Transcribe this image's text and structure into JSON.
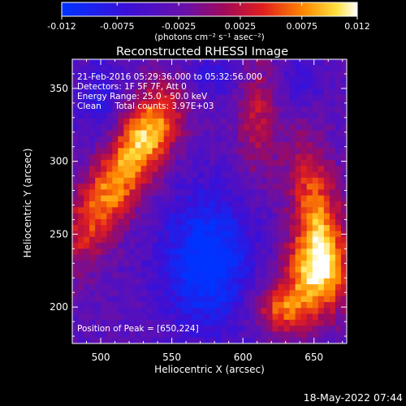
{
  "footer_timestamp": "18-May-2022 07:44",
  "chart_data": {
    "type": "heatmap",
    "title": "Reconstructed RHESSI Image",
    "xlabel": "Heliocentric X (arcsec)",
    "ylabel": "Heliocentric Y (arcsec)",
    "xlim": [
      480,
      673
    ],
    "ylim": [
      175,
      370
    ],
    "xticks": [
      500,
      550,
      600,
      650
    ],
    "yticks": [
      200,
      250,
      300,
      350
    ],
    "colorbar": {
      "min": -0.012,
      "max": 0.012,
      "ticks": [
        "-0.012",
        "-0.0075",
        "-0.0025",
        "0.0025",
        "0.0075",
        "0.012"
      ],
      "tick_values": [
        -0.012,
        -0.0075,
        -0.0025,
        0.0025,
        0.0075,
        0.012
      ],
      "unit_label": "(photons cm⁻² s⁻¹ asec⁻²)"
    },
    "annotations": [
      "21-Feb-2016 05:29:36.000 to 05:32:56.000",
      "Detectors: 1F 5F 7F, Att 0",
      "Energy Range: 25.0 - 50.0 keV",
      "Clean     Total counts: 3.97E+03"
    ],
    "peak_label": "Position of Peak = [650,224]",
    "peak": {
      "x": 650,
      "y": 224
    },
    "grid_size": {
      "nx": 48,
      "ny": 48
    },
    "sources": [
      {
        "x": 507,
        "y": 280,
        "sx": 14,
        "sy": 42,
        "amp": 0.011,
        "rot": -0.55
      },
      {
        "x": 535,
        "y": 322,
        "sx": 14,
        "sy": 22,
        "amp": 0.008,
        "rot": -0.4
      },
      {
        "x": 610,
        "y": 330,
        "sx": 10,
        "sy": 30,
        "amp": 0.006,
        "rot": 0.0
      },
      {
        "x": 652,
        "y": 265,
        "sx": 12,
        "sy": 35,
        "amp": 0.01,
        "rot": 0.2
      },
      {
        "x": 650,
        "y": 224,
        "sx": 15,
        "sy": 20,
        "amp": 0.012,
        "rot": 0.0
      },
      {
        "x": 628,
        "y": 198,
        "sx": 14,
        "sy": 12,
        "amp": 0.009,
        "rot": 0.0
      },
      {
        "x": 575,
        "y": 232,
        "sx": 22,
        "sy": 32,
        "amp": -0.01,
        "rot": 0.0
      },
      {
        "x": 500,
        "y": 340,
        "sx": 12,
        "sy": 20,
        "amp": -0.004,
        "rot": 0.0
      },
      {
        "x": 580,
        "y": 360,
        "sx": 14,
        "sy": 10,
        "amp": -0.004,
        "rot": 0.0
      },
      {
        "x": 640,
        "y": 355,
        "sx": 12,
        "sy": 14,
        "amp": -0.003,
        "rot": 0.0
      }
    ],
    "background_level": -0.0035,
    "grid": false
  }
}
